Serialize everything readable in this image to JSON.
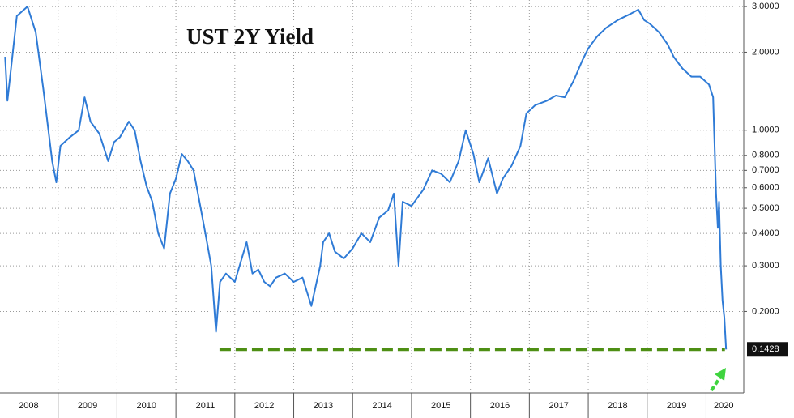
{
  "chart_data": {
    "type": "line",
    "title": "UST 2Y Yield",
    "log_y": true,
    "grid": true,
    "x": [
      2008.1,
      2008.14,
      2008.3,
      2008.48,
      2008.62,
      2008.75,
      2008.9,
      2008.97,
      2009.04,
      2009.2,
      2009.35,
      2009.45,
      2009.55,
      2009.7,
      2009.85,
      2009.95,
      2010.05,
      2010.2,
      2010.3,
      2010.4,
      2010.5,
      2010.6,
      2010.7,
      2010.8,
      2010.9,
      2011.0,
      2011.1,
      2011.2,
      2011.3,
      2011.4,
      2011.5,
      2011.6,
      2011.68,
      2011.75,
      2011.85,
      2012.0,
      2012.2,
      2012.3,
      2012.4,
      2012.5,
      2012.6,
      2012.7,
      2012.85,
      2013.0,
      2013.15,
      2013.3,
      2013.45,
      2013.5,
      2013.6,
      2013.7,
      2013.85,
      2014.0,
      2014.15,
      2014.3,
      2014.45,
      2014.6,
      2014.7,
      2014.78,
      2014.85,
      2015.0,
      2015.2,
      2015.35,
      2015.5,
      2015.65,
      2015.8,
      2015.92,
      2016.05,
      2016.15,
      2016.3,
      2016.45,
      2016.55,
      2016.7,
      2016.85,
      2016.95,
      2017.1,
      2017.3,
      2017.45,
      2017.6,
      2017.75,
      2017.9,
      2018.0,
      2018.15,
      2018.3,
      2018.5,
      2018.7,
      2018.85,
      2018.95,
      2019.05,
      2019.2,
      2019.35,
      2019.45,
      2019.6,
      2019.75,
      2019.9,
      2020.05,
      2020.12,
      2020.17,
      2020.2,
      2020.22,
      2020.25,
      2020.28,
      2020.31,
      2020.34
    ],
    "series": [
      {
        "name": "UST 2Y Yield",
        "color": "#2f7bd6",
        "values": [
          1.92,
          1.3,
          2.76,
          3.0,
          2.39,
          1.44,
          0.76,
          0.63,
          0.87,
          0.94,
          1.0,
          1.34,
          1.08,
          0.97,
          0.76,
          0.9,
          0.94,
          1.08,
          1.0,
          0.76,
          0.61,
          0.53,
          0.4,
          0.35,
          0.57,
          0.65,
          0.81,
          0.76,
          0.7,
          0.53,
          0.4,
          0.3,
          0.167,
          0.26,
          0.28,
          0.26,
          0.37,
          0.28,
          0.29,
          0.26,
          0.25,
          0.27,
          0.28,
          0.26,
          0.27,
          0.21,
          0.3,
          0.37,
          0.4,
          0.34,
          0.32,
          0.35,
          0.4,
          0.37,
          0.46,
          0.49,
          0.57,
          0.3,
          0.53,
          0.51,
          0.59,
          0.7,
          0.68,
          0.63,
          0.76,
          1.0,
          0.81,
          0.63,
          0.78,
          0.57,
          0.65,
          0.73,
          0.87,
          1.16,
          1.25,
          1.3,
          1.36,
          1.34,
          1.55,
          1.86,
          2.07,
          2.3,
          2.48,
          2.66,
          2.8,
          2.92,
          2.66,
          2.57,
          2.39,
          2.14,
          1.92,
          1.73,
          1.61,
          1.61,
          1.5,
          1.34,
          0.57,
          0.42,
          0.53,
          0.3,
          0.22,
          0.19,
          0.1428
        ]
      }
    ],
    "xlim": [
      2008,
      2020.64
    ],
    "ylim": [
      0.097,
      3.18
    ],
    "yticks": [
      {
        "value": 3,
        "label": "3.0000"
      },
      {
        "value": 2,
        "label": "2.0000"
      },
      {
        "value": 1,
        "label": "1.0000"
      },
      {
        "value": 0.8,
        "label": "0.8000"
      },
      {
        "value": 0.7,
        "label": "0.7000"
      },
      {
        "value": 0.6,
        "label": "0.6000"
      },
      {
        "value": 0.5,
        "label": "0.5000"
      },
      {
        "value": 0.4,
        "label": "0.4000"
      },
      {
        "value": 0.3,
        "label": "0.3000"
      },
      {
        "value": 0.2,
        "label": "0.2000"
      }
    ],
    "xticks": [
      {
        "value": 2008.5,
        "label": "2008"
      },
      {
        "value": 2009.5,
        "label": "2009"
      },
      {
        "value": 2010.5,
        "label": "2010"
      },
      {
        "value": 2011.5,
        "label": "2011"
      },
      {
        "value": 2012.5,
        "label": "2012"
      },
      {
        "value": 2013.5,
        "label": "2013"
      },
      {
        "value": 2014.5,
        "label": "2014"
      },
      {
        "value": 2015.5,
        "label": "2015"
      },
      {
        "value": 2016.5,
        "label": "2016"
      },
      {
        "value": 2017.5,
        "label": "2017"
      },
      {
        "value": 2018.5,
        "label": "2018"
      },
      {
        "value": 2019.5,
        "label": "2019"
      },
      {
        "value": 2020.3,
        "label": "2020"
      }
    ],
    "x_separators": [
      2009,
      2010,
      2011,
      2012,
      2013,
      2014,
      2015,
      2016,
      2017,
      2018,
      2019,
      2020
    ],
    "reference_line": {
      "value": 0.1428,
      "from": 2011.74,
      "to": 2020.32,
      "color": "#4e8f14"
    }
  }
}
